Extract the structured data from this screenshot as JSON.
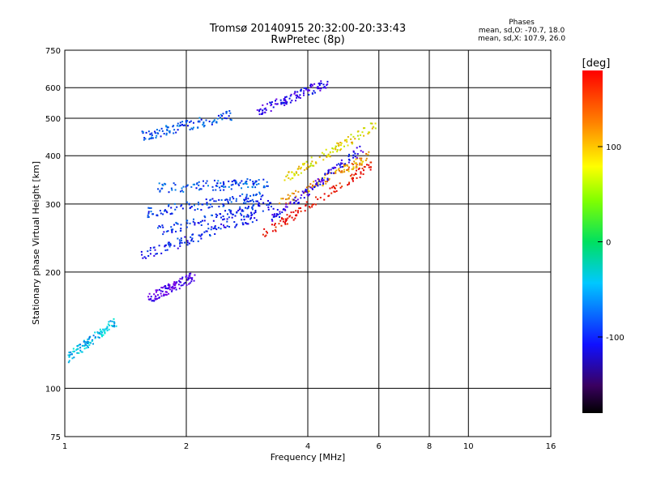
{
  "chart_data": {
    "type": "scatter",
    "title": "Tromsø 20140915 20:32:00-20:33:43",
    "subtitle": "RwPretec (8p)",
    "xlabel": "Frequency [MHz]",
    "ylabel": "Stationary phase Virtual Height [km]",
    "x_scale": "log",
    "y_scale": "log",
    "xlim": [
      1,
      16
    ],
    "ylim": [
      75,
      750
    ],
    "x_ticks": [
      1,
      2,
      4,
      6,
      8,
      10,
      16
    ],
    "y_ticks": [
      75,
      100,
      200,
      300,
      400,
      500,
      600,
      750
    ],
    "grid": true,
    "phase_stats": {
      "heading": "Phases",
      "line_o": "mean, sd,O: -70.7, 18.0",
      "line_x": "mean, sd,X: 107.9, 26.0"
    },
    "colorbar": {
      "label": "[deg]",
      "range": [
        -180,
        180
      ],
      "ticks": [
        -100,
        0,
        100
      ],
      "colormap": "rainbow (black-purple-blue-cyan-green-yellow-orange-red)"
    },
    "traces": [
      {
        "x_range": [
          1.55,
          3.0
        ],
        "y_start": 220,
        "y_end": 280,
        "phase": -95
      },
      {
        "x_range": [
          1.7,
          3.3
        ],
        "y_start": 255,
        "y_end": 300,
        "phase": -90
      },
      {
        "x_range": [
          1.6,
          3.1
        ],
        "y_start": 285,
        "y_end": 315,
        "phase": -85
      },
      {
        "x_range": [
          1.7,
          3.2
        ],
        "y_start": 330,
        "y_end": 340,
        "phase": -80
      },
      {
        "x_range": [
          3.1,
          5.8
        ],
        "y_start": 250,
        "y_end": 380,
        "phase": 150
      },
      {
        "x_range": [
          3.4,
          5.7
        ],
        "y_start": 300,
        "y_end": 400,
        "phase": 110
      },
      {
        "x_range": [
          3.5,
          5.9
        ],
        "y_start": 350,
        "y_end": 480,
        "phase": 90
      },
      {
        "x_range": [
          3.2,
          5.5
        ],
        "y_start": 270,
        "y_end": 420,
        "phase": -110
      },
      {
        "x_range": [
          1.55,
          2.6
        ],
        "y_start": 450,
        "y_end": 510,
        "phase": -80
      },
      {
        "x_range": [
          3.0,
          4.5
        ],
        "y_start": 520,
        "y_end": 620,
        "phase": -110
      },
      {
        "x_range": [
          1.6,
          2.1
        ],
        "y_start": 170,
        "y_end": 195,
        "phase": -125
      },
      {
        "x_range": [
          1.02,
          1.35
        ],
        "y_start": 120,
        "y_end": 150,
        "phase": -50
      }
    ]
  }
}
